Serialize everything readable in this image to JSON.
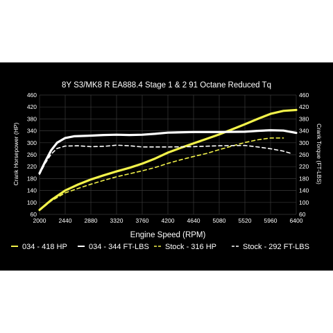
{
  "chart_data": {
    "type": "line",
    "title": "8Y S3/MK8 R EA888.4 Stage 1 & 2 91 Octane Reduced Tq",
    "xlabel": "Engine Speed (RPM)",
    "ylabel_left": "Crank Horsepower (HP)",
    "ylabel_right": "Crank Torque (FT-LBS)",
    "xlim": [
      2000,
      6400
    ],
    "ylim": [
      60,
      460
    ],
    "x_ticks": [
      "2000",
      "2440",
      "2880",
      "3320",
      "3760",
      "4200",
      "4640",
      "5080",
      "5520",
      "5960",
      "6400"
    ],
    "y_ticks": [
      "460",
      "420",
      "380",
      "340",
      "300",
      "260",
      "220",
      "180",
      "140",
      "100",
      "60"
    ],
    "grid": true,
    "legend_position": "bottom",
    "series": [
      {
        "name": "034 - 418 HP",
        "color": "#f2f24a",
        "style": "solid",
        "axis": "left",
        "x": [
          2000,
          2200,
          2440,
          2660,
          2880,
          3100,
          3320,
          3540,
          3760,
          3980,
          4200,
          4420,
          4640,
          4860,
          5080,
          5300,
          5520,
          5740,
          5960,
          6180,
          6400
        ],
        "y": [
          75,
          108,
          140,
          160,
          177,
          191,
          204,
          216,
          230,
          247,
          267,
          283,
          298,
          313,
          328,
          345,
          362,
          380,
          397,
          407,
          410
        ]
      },
      {
        "name": "034 - 344 FT-LBS",
        "color": "#ffffff",
        "style": "solid",
        "axis": "right",
        "x": [
          2000,
          2100,
          2200,
          2300,
          2440,
          2600,
          2880,
          3100,
          3320,
          3540,
          3760,
          3980,
          4200,
          4640,
          5080,
          5520,
          5740,
          5960,
          6180,
          6400
        ],
        "y": [
          198,
          238,
          275,
          300,
          316,
          322,
          324,
          326,
          327,
          326,
          327,
          330,
          334,
          336,
          336,
          337,
          340,
          342,
          341,
          333
        ]
      },
      {
        "name": "Stock - 316 HP",
        "color": "#f2f24a",
        "style": "dashed",
        "axis": "left",
        "x": [
          2000,
          2200,
          2440,
          2660,
          2880,
          3100,
          3320,
          3540,
          3760,
          3980,
          4200,
          4420,
          4640,
          4860,
          5080,
          5300,
          5520,
          5740,
          5960,
          6180
        ],
        "y": [
          73,
          105,
          132,
          147,
          161,
          174,
          186,
          196,
          206,
          217,
          231,
          243,
          254,
          264,
          277,
          289,
          301,
          310,
          316,
          316
        ]
      },
      {
        "name": "Stock - 292 FT-LBS",
        "color": "#ffffff",
        "style": "dashed",
        "axis": "right",
        "x": [
          2000,
          2100,
          2200,
          2300,
          2440,
          2660,
          2880,
          3100,
          3320,
          3540,
          3760,
          3980,
          4200,
          4640,
          5080,
          5520,
          5740,
          5960,
          6180,
          6300
        ],
        "y": [
          194,
          232,
          262,
          281,
          289,
          290,
          287,
          288,
          292,
          290,
          286,
          286,
          286,
          287,
          290,
          291,
          286,
          280,
          272,
          265
        ]
      }
    ]
  }
}
